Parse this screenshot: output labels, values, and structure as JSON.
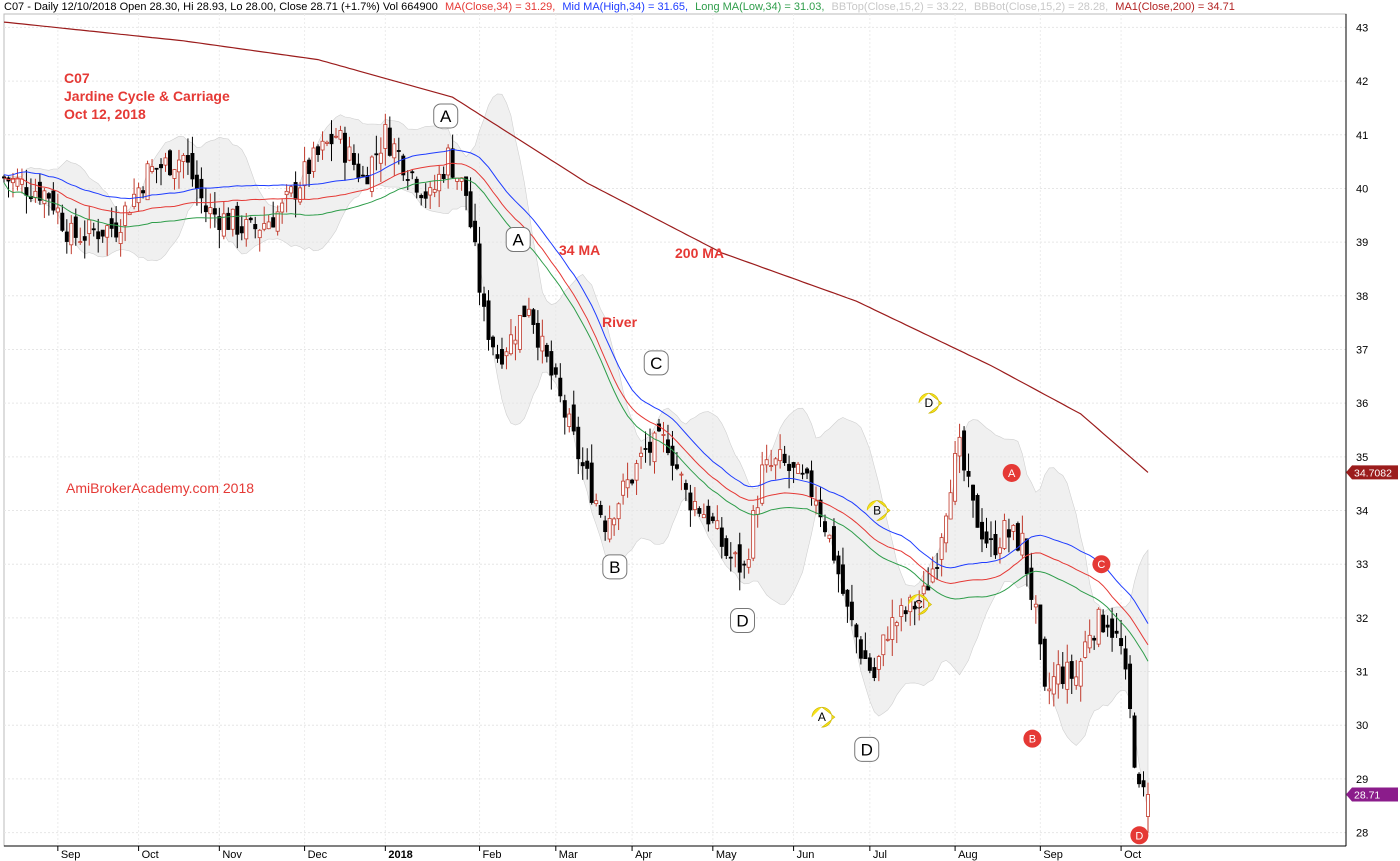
{
  "header": {
    "segments": [
      {
        "text": "C07 - Daily 12/10/2018 Open 28.30, Hi 28.93, Lo 28.00, Close 28.71 (+1.7%) Vol 664900",
        "color": "#000000"
      },
      {
        "text": "MA(Close,34) = 31.29,",
        "color": "#e53935"
      },
      {
        "text": "Mid MA(High,34) = 31.65,",
        "color": "#1e3cff"
      },
      {
        "text": "Long MA(Low,34) = 31.03,",
        "color": "#2e9d4a"
      },
      {
        "text": "BBTop(Close,15,2) = 33.22,",
        "color": "#c8c8c8"
      },
      {
        "text": "BBBot(Close,15,2) = 28.28,",
        "color": "#c8c8c8"
      },
      {
        "text": "MA1(Close,200) = 34.71",
        "color": "#b22222"
      }
    ]
  },
  "annotations": {
    "ticker": "C07",
    "name": "Jardine Cycle & Carriage",
    "date": "Oct 12, 2018",
    "ma34": "34 MA",
    "ma200": "200 MA",
    "river": "River",
    "site": "AmiBrokerAcademy.com  2018"
  },
  "colors": {
    "up": "#c0392b",
    "down": "#000000",
    "ma34": "#e53935",
    "mid": "#1e3cff",
    "long": "#2e9d4a",
    "ma200": "#9b1c1c",
    "band": "#e4e4e4",
    "text_red": "#e53935",
    "yellow": "#f7e21a",
    "label_red": "#e53935"
  },
  "chart_data": {
    "type": "candlestick",
    "ylim": [
      27.75,
      43.25
    ],
    "y_ticks": [
      28,
      29,
      30,
      31,
      32,
      33,
      34,
      35,
      36,
      37,
      38,
      39,
      40,
      41,
      42,
      43
    ],
    "x_ticks": [
      {
        "label": "Sep",
        "i": 12
      },
      {
        "label": "Oct",
        "i": 30
      },
      {
        "label": "Nov",
        "i": 48
      },
      {
        "label": "Dec",
        "i": 67
      },
      {
        "label": "2018",
        "i": 85
      },
      {
        "label": "Feb",
        "i": 106
      },
      {
        "label": "Mar",
        "i": 123
      },
      {
        "label": "Apr",
        "i": 140
      },
      {
        "label": "May",
        "i": 158
      },
      {
        "label": "Jun",
        "i": 176
      },
      {
        "label": "Jul",
        "i": 193
      },
      {
        "label": "Aug",
        "i": 212
      },
      {
        "label": "Sep",
        "i": 231
      },
      {
        "label": "Oct",
        "i": 249
      }
    ],
    "n_bars": 256,
    "anchors": [
      [
        0,
        40.2
      ],
      [
        10,
        39.9
      ],
      [
        15,
        39.1
      ],
      [
        25,
        39.3
      ],
      [
        32,
        40.3
      ],
      [
        40,
        40.6
      ],
      [
        45,
        39.6
      ],
      [
        55,
        39.2
      ],
      [
        62,
        39.6
      ],
      [
        68,
        40.4
      ],
      [
        74,
        41.0
      ],
      [
        80,
        40.2
      ],
      [
        85,
        41.0
      ],
      [
        90,
        40.4
      ],
      [
        95,
        39.8
      ],
      [
        99,
        40.6
      ],
      [
        103,
        39.9
      ],
      [
        107,
        37.6
      ],
      [
        110,
        36.9
      ],
      [
        113,
        37.2
      ],
      [
        117,
        37.9
      ],
      [
        120,
        37.0
      ],
      [
        125,
        35.8
      ],
      [
        129,
        34.8
      ],
      [
        134,
        33.8
      ],
      [
        139,
        34.5
      ],
      [
        143,
        35.1
      ],
      [
        148,
        35.3
      ],
      [
        152,
        34.3
      ],
      [
        157,
        33.9
      ],
      [
        161,
        33.2
      ],
      [
        165,
        32.9
      ],
      [
        169,
        34.7
      ],
      [
        173,
        34.9
      ],
      [
        177,
        34.6
      ],
      [
        181,
        34.3
      ],
      [
        185,
        33.2
      ],
      [
        188,
        32.1
      ],
      [
        191,
        31.4
      ],
      [
        194,
        30.9
      ],
      [
        197,
        31.8
      ],
      [
        201,
        32.1
      ],
      [
        205,
        32.4
      ],
      [
        208,
        33.2
      ],
      [
        211,
        34.6
      ],
      [
        213,
        35.1
      ],
      [
        216,
        34.0
      ],
      [
        220,
        33.3
      ],
      [
        223,
        33.6
      ],
      [
        227,
        33.4
      ],
      [
        230,
        32.0
      ],
      [
        232,
        30.5
      ],
      [
        235,
        31.0
      ],
      [
        239,
        30.9
      ],
      [
        242,
        31.8
      ],
      [
        246,
        32.0
      ],
      [
        249,
        31.4
      ],
      [
        251,
        30.2
      ],
      [
        253,
        28.7
      ],
      [
        255,
        28.71
      ]
    ],
    "ma200_anchors": [
      [
        0,
        43.1
      ],
      [
        40,
        42.75
      ],
      [
        70,
        42.4
      ],
      [
        100,
        41.7
      ],
      [
        130,
        40.1
      ],
      [
        160,
        38.8
      ],
      [
        190,
        37.9
      ],
      [
        220,
        36.7
      ],
      [
        240,
        35.8
      ],
      [
        255,
        34.71
      ]
    ],
    "price_labels": [
      {
        "value": "34.7082",
        "y": 34.71,
        "bg": "#9b1c1c"
      },
      {
        "value": "28.71",
        "y": 28.71,
        "bg": "#8b1c8b"
      }
    ],
    "wave_labels": [
      {
        "text": "A",
        "i": 128,
        "y": 41.35,
        "style": "white"
      },
      {
        "text": "A",
        "i": 149,
        "y": 39.05,
        "style": "white"
      },
      {
        "text": "C",
        "i": 189,
        "y": 36.75,
        "style": "white"
      },
      {
        "text": "B",
        "i": 177,
        "y": 32.95,
        "style": "white"
      },
      {
        "text": "D",
        "i": 214,
        "y": 31.95,
        "style": "white"
      },
      {
        "text": "D",
        "i": 250,
        "y": 29.55,
        "style": "white"
      },
      {
        "text": "A",
        "i": 237,
        "y": 30.15,
        "style": "yellow"
      },
      {
        "text": "B",
        "i": 253,
        "y": 34.0,
        "style": "yellow"
      },
      {
        "text": "C",
        "i": 265,
        "y": 32.25,
        "style": "yellow"
      },
      {
        "text": "D",
        "i": 268,
        "y": 36.0,
        "style": "yellow"
      },
      {
        "text": "A",
        "i": 292,
        "y": 34.7,
        "style": "red"
      },
      {
        "text": "B",
        "i": 298,
        "y": 29.75,
        "style": "red"
      },
      {
        "text": "C",
        "i": 318,
        "y": 33.0,
        "style": "red"
      },
      {
        "text": "D",
        "i": 329,
        "y": 27.95,
        "style": "red"
      }
    ]
  }
}
